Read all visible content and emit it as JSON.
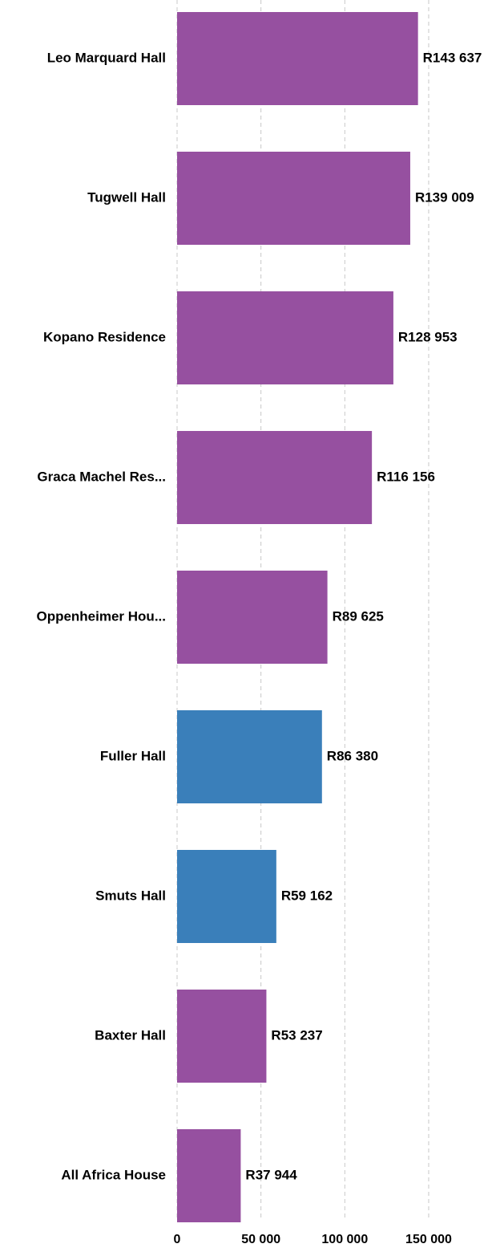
{
  "chart_data": {
    "type": "bar",
    "orientation": "horizontal",
    "categories": [
      "Leo Marquard Hall",
      "Tugwell Hall",
      "Kopano Residence",
      "Graca Machel Res...",
      "Oppenheimer Hou...",
      "Fuller Hall",
      "Smuts Hall",
      "Baxter Hall",
      "All Africa House"
    ],
    "values": [
      143637,
      139009,
      128953,
      116156,
      89625,
      86380,
      59162,
      53237,
      37944
    ],
    "value_labels": [
      "R143 637",
      "R139 009",
      "R128 953",
      "R116 156",
      "R89 625",
      "R86 380",
      "R59 162",
      "R53 237",
      "R37 944"
    ],
    "colors": [
      "#9650a0",
      "#9650a0",
      "#9650a0",
      "#9650a0",
      "#9650a0",
      "#3a7fba",
      "#3a7fba",
      "#9650a0",
      "#9650a0"
    ],
    "xlim": [
      0,
      190000
    ],
    "xticks": [
      0,
      {
        "value": 50000,
        "label": "50 000"
      },
      {
        "value": 100000,
        "label": "100 000"
      },
      {
        "value": 150000,
        "label": "150 000"
      }
    ],
    "grid": true
  }
}
